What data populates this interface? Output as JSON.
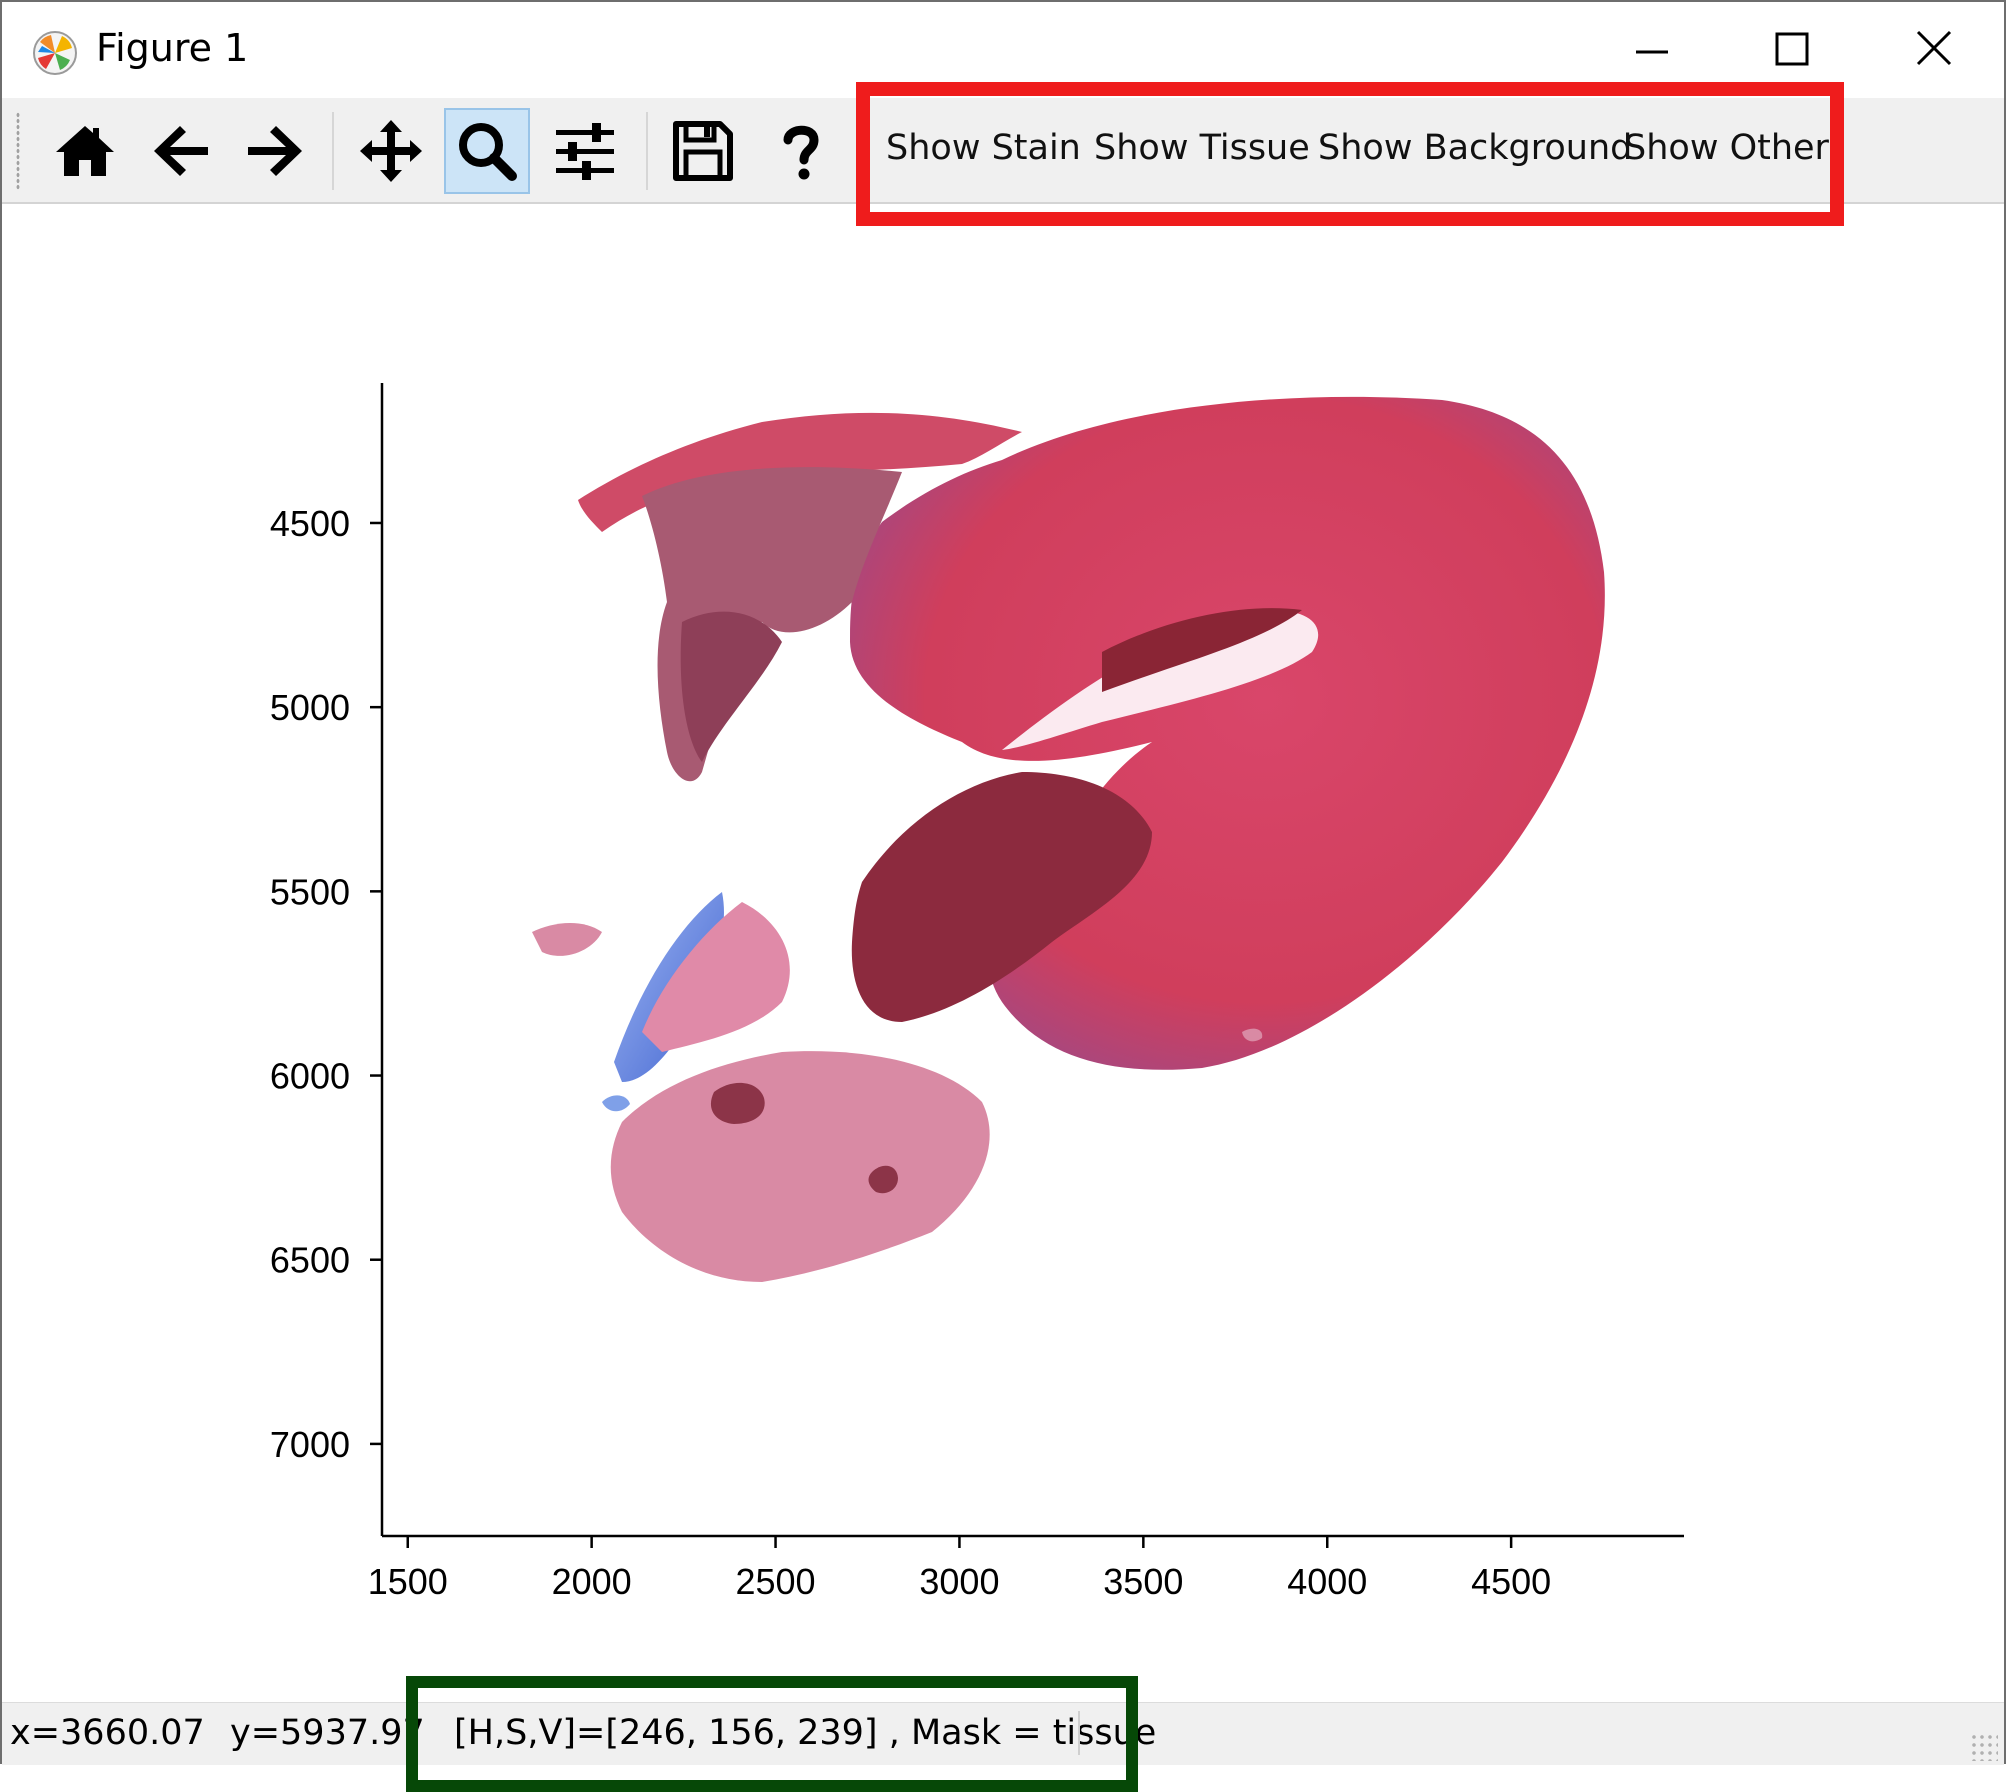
{
  "window": {
    "title": "Figure 1",
    "icon": "matplotlib-icon"
  },
  "toolbar": {
    "buttons": [
      {
        "name": "home",
        "icon": "home-icon"
      },
      {
        "name": "back",
        "icon": "arrow-left-icon"
      },
      {
        "name": "forward",
        "icon": "arrow-right-icon"
      },
      {
        "name": "pan",
        "icon": "move-icon"
      },
      {
        "name": "zoom",
        "icon": "magnifier-icon",
        "active": true
      },
      {
        "name": "subplots",
        "icon": "sliders-icon"
      },
      {
        "name": "save",
        "icon": "floppy-disk-icon"
      },
      {
        "name": "help",
        "icon": "question-mark-icon"
      }
    ],
    "custom_buttons": [
      "Show Stain",
      "Show Tissue",
      "Show Background",
      "Show Other"
    ]
  },
  "highlight_colors": {
    "toolbar_box": "#ef1c1c",
    "status_box": "#064807"
  },
  "chart_data": {
    "type": "image",
    "xticks": [
      1500,
      2000,
      2500,
      3000,
      3500,
      4000,
      4500
    ],
    "yticks": [
      4500,
      5000,
      5500,
      6000,
      6500,
      7000
    ],
    "xlim": [
      1430,
      4970
    ],
    "ylim": [
      7250,
      4120
    ],
    "image_colors": {
      "tissue": "#d4405e",
      "dark_tissue": "#8c2a3e",
      "pale_tissue": "#d98aa4",
      "stain": "#6f8fdc"
    }
  },
  "status": {
    "x_readout": "x=3660.07",
    "y_readout": "y=5937.97",
    "hsv_readout": "[H,S,V]=[246, 156, 239] , Mask = tissue"
  }
}
